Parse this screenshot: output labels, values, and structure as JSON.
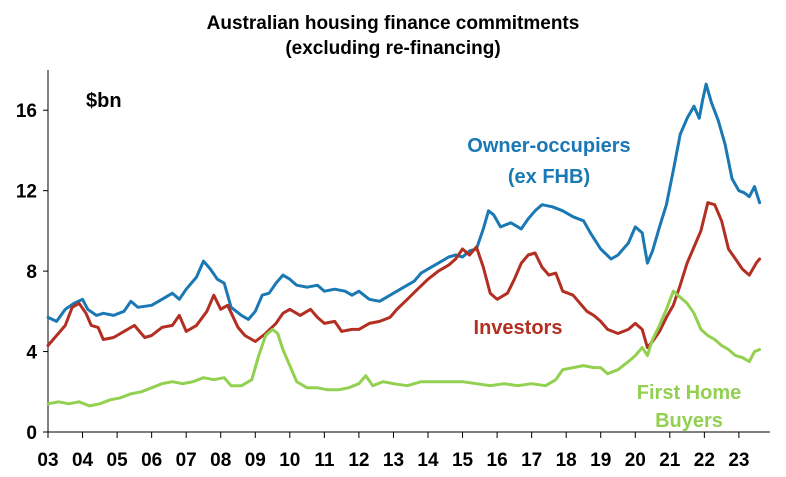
{
  "chart_data": {
    "type": "line",
    "title": "Australian housing finance commitments",
    "subtitle": "(excluding re-financing)",
    "unit_label": "$bn",
    "xlabel": "",
    "ylabel": "",
    "xlim": [
      2003.0,
      2023.9
    ],
    "ylim": [
      0,
      18
    ],
    "y_ticks": [
      0,
      4,
      8,
      12,
      16
    ],
    "x_ticks": [
      {
        "pos": 2003,
        "label": "03"
      },
      {
        "pos": 2004,
        "label": "04"
      },
      {
        "pos": 2005,
        "label": "05"
      },
      {
        "pos": 2006,
        "label": "06"
      },
      {
        "pos": 2007,
        "label": "07"
      },
      {
        "pos": 2008,
        "label": "08"
      },
      {
        "pos": 2009,
        "label": "09"
      },
      {
        "pos": 2010,
        "label": "10"
      },
      {
        "pos": 2011,
        "label": "11"
      },
      {
        "pos": 2012,
        "label": "12"
      },
      {
        "pos": 2013,
        "label": "13"
      },
      {
        "pos": 2014,
        "label": "14"
      },
      {
        "pos": 2015,
        "label": "15"
      },
      {
        "pos": 2016,
        "label": "16"
      },
      {
        "pos": 2017,
        "label": "17"
      },
      {
        "pos": 2018,
        "label": "18"
      },
      {
        "pos": 2019,
        "label": "19"
      },
      {
        "pos": 2020,
        "label": "20"
      },
      {
        "pos": 2021,
        "label": "21"
      },
      {
        "pos": 2022,
        "label": "22"
      },
      {
        "pos": 2023,
        "label": "23"
      }
    ],
    "grid": false,
    "series": [
      {
        "name": "Owner-occupiers (ex FHB)",
        "label_lines": [
          "Owner-occupiers",
          "(ex FHB)"
        ],
        "color": "#1a78b4",
        "points": [
          [
            2003.0,
            5.7
          ],
          [
            2003.25,
            5.5
          ],
          [
            2003.5,
            6.1
          ],
          [
            2003.75,
            6.4
          ],
          [
            2004.0,
            6.6
          ],
          [
            2004.15,
            6.1
          ],
          [
            2004.4,
            5.8
          ],
          [
            2004.6,
            5.9
          ],
          [
            2004.9,
            5.8
          ],
          [
            2005.2,
            6.0
          ],
          [
            2005.4,
            6.5
          ],
          [
            2005.6,
            6.2
          ],
          [
            2006.0,
            6.3
          ],
          [
            2006.3,
            6.6
          ],
          [
            2006.6,
            6.9
          ],
          [
            2006.8,
            6.6
          ],
          [
            2007.0,
            7.1
          ],
          [
            2007.3,
            7.7
          ],
          [
            2007.5,
            8.5
          ],
          [
            2007.7,
            8.1
          ],
          [
            2007.9,
            7.6
          ],
          [
            2008.1,
            7.4
          ],
          [
            2008.3,
            6.2
          ],
          [
            2008.6,
            5.8
          ],
          [
            2008.8,
            5.6
          ],
          [
            2009.0,
            6.0
          ],
          [
            2009.2,
            6.8
          ],
          [
            2009.4,
            6.9
          ],
          [
            2009.6,
            7.4
          ],
          [
            2009.8,
            7.8
          ],
          [
            2010.0,
            7.6
          ],
          [
            2010.2,
            7.3
          ],
          [
            2010.5,
            7.2
          ],
          [
            2010.8,
            7.3
          ],
          [
            2011.0,
            7.0
          ],
          [
            2011.3,
            7.1
          ],
          [
            2011.6,
            7.0
          ],
          [
            2011.8,
            6.8
          ],
          [
            2012.0,
            7.0
          ],
          [
            2012.3,
            6.6
          ],
          [
            2012.6,
            6.5
          ],
          [
            2012.8,
            6.7
          ],
          [
            2013.0,
            6.9
          ],
          [
            2013.3,
            7.2
          ],
          [
            2013.6,
            7.5
          ],
          [
            2013.8,
            7.9
          ],
          [
            2014.0,
            8.1
          ],
          [
            2014.3,
            8.4
          ],
          [
            2014.6,
            8.7
          ],
          [
            2014.8,
            8.8
          ],
          [
            2015.0,
            8.7
          ],
          [
            2015.2,
            9.0
          ],
          [
            2015.4,
            9.1
          ],
          [
            2015.6,
            10.1
          ],
          [
            2015.75,
            11.0
          ],
          [
            2015.9,
            10.8
          ],
          [
            2016.1,
            10.2
          ],
          [
            2016.4,
            10.4
          ],
          [
            2016.7,
            10.1
          ],
          [
            2016.9,
            10.6
          ],
          [
            2017.1,
            11.0
          ],
          [
            2017.3,
            11.3
          ],
          [
            2017.6,
            11.2
          ],
          [
            2017.9,
            11.0
          ],
          [
            2018.2,
            10.7
          ],
          [
            2018.5,
            10.5
          ],
          [
            2018.7,
            9.9
          ],
          [
            2019.0,
            9.1
          ],
          [
            2019.3,
            8.6
          ],
          [
            2019.5,
            8.8
          ],
          [
            2019.8,
            9.4
          ],
          [
            2020.0,
            10.2
          ],
          [
            2020.2,
            9.9
          ],
          [
            2020.35,
            8.4
          ],
          [
            2020.5,
            9.0
          ],
          [
            2020.7,
            10.2
          ],
          [
            2020.9,
            11.3
          ],
          [
            2021.1,
            13.0
          ],
          [
            2021.3,
            14.8
          ],
          [
            2021.5,
            15.6
          ],
          [
            2021.7,
            16.2
          ],
          [
            2021.85,
            15.6
          ],
          [
            2021.95,
            16.5
          ],
          [
            2022.05,
            17.3
          ],
          [
            2022.2,
            16.4
          ],
          [
            2022.4,
            15.5
          ],
          [
            2022.6,
            14.3
          ],
          [
            2022.8,
            12.6
          ],
          [
            2023.0,
            12.0
          ],
          [
            2023.15,
            11.9
          ],
          [
            2023.3,
            11.7
          ],
          [
            2023.45,
            12.2
          ],
          [
            2023.6,
            11.4
          ]
        ]
      },
      {
        "name": "Investors",
        "label_lines": [
          "Investors"
        ],
        "color": "#b22f22",
        "points": [
          [
            2003.0,
            4.3
          ],
          [
            2003.2,
            4.7
          ],
          [
            2003.5,
            5.3
          ],
          [
            2003.7,
            6.2
          ],
          [
            2003.9,
            6.4
          ],
          [
            2004.1,
            5.9
          ],
          [
            2004.25,
            5.3
          ],
          [
            2004.45,
            5.2
          ],
          [
            2004.6,
            4.6
          ],
          [
            2004.9,
            4.7
          ],
          [
            2005.2,
            5.0
          ],
          [
            2005.5,
            5.3
          ],
          [
            2005.8,
            4.7
          ],
          [
            2006.0,
            4.8
          ],
          [
            2006.3,
            5.2
          ],
          [
            2006.6,
            5.3
          ],
          [
            2006.8,
            5.8
          ],
          [
            2007.0,
            5.0
          ],
          [
            2007.3,
            5.3
          ],
          [
            2007.6,
            6.0
          ],
          [
            2007.8,
            6.8
          ],
          [
            2008.0,
            6.1
          ],
          [
            2008.2,
            6.3
          ],
          [
            2008.5,
            5.2
          ],
          [
            2008.7,
            4.8
          ],
          [
            2009.0,
            4.5
          ],
          [
            2009.3,
            4.9
          ],
          [
            2009.6,
            5.4
          ],
          [
            2009.8,
            5.9
          ],
          [
            2010.0,
            6.1
          ],
          [
            2010.3,
            5.8
          ],
          [
            2010.6,
            6.1
          ],
          [
            2010.8,
            5.7
          ],
          [
            2011.0,
            5.4
          ],
          [
            2011.3,
            5.5
          ],
          [
            2011.5,
            5.0
          ],
          [
            2011.8,
            5.1
          ],
          [
            2012.0,
            5.1
          ],
          [
            2012.3,
            5.4
          ],
          [
            2012.6,
            5.5
          ],
          [
            2012.9,
            5.7
          ],
          [
            2013.1,
            6.1
          ],
          [
            2013.4,
            6.6
          ],
          [
            2013.7,
            7.1
          ],
          [
            2014.0,
            7.6
          ],
          [
            2014.3,
            8.0
          ],
          [
            2014.6,
            8.3
          ],
          [
            2014.8,
            8.6
          ],
          [
            2015.0,
            9.1
          ],
          [
            2015.2,
            8.8
          ],
          [
            2015.4,
            9.2
          ],
          [
            2015.6,
            8.2
          ],
          [
            2015.8,
            6.9
          ],
          [
            2016.0,
            6.6
          ],
          [
            2016.3,
            6.9
          ],
          [
            2016.5,
            7.6
          ],
          [
            2016.7,
            8.4
          ],
          [
            2016.9,
            8.8
          ],
          [
            2017.1,
            8.9
          ],
          [
            2017.3,
            8.2
          ],
          [
            2017.5,
            7.8
          ],
          [
            2017.7,
            7.9
          ],
          [
            2017.9,
            7.0
          ],
          [
            2018.2,
            6.8
          ],
          [
            2018.4,
            6.4
          ],
          [
            2018.6,
            6.0
          ],
          [
            2018.8,
            5.8
          ],
          [
            2019.0,
            5.5
          ],
          [
            2019.2,
            5.1
          ],
          [
            2019.5,
            4.9
          ],
          [
            2019.8,
            5.1
          ],
          [
            2020.0,
            5.4
          ],
          [
            2020.2,
            5.1
          ],
          [
            2020.35,
            4.2
          ],
          [
            2020.5,
            4.5
          ],
          [
            2020.7,
            5.0
          ],
          [
            2020.9,
            5.7
          ],
          [
            2021.1,
            6.3
          ],
          [
            2021.3,
            7.3
          ],
          [
            2021.5,
            8.4
          ],
          [
            2021.7,
            9.2
          ],
          [
            2021.9,
            10.0
          ],
          [
            2022.1,
            11.4
          ],
          [
            2022.3,
            11.3
          ],
          [
            2022.5,
            10.5
          ],
          [
            2022.7,
            9.1
          ],
          [
            2022.9,
            8.6
          ],
          [
            2023.1,
            8.1
          ],
          [
            2023.3,
            7.8
          ],
          [
            2023.5,
            8.4
          ],
          [
            2023.6,
            8.6
          ]
        ]
      },
      {
        "name": "First Home Buyers",
        "label_lines": [
          "First Home",
          "Buyers"
        ],
        "color": "#92d050",
        "points": [
          [
            2003.0,
            1.4
          ],
          [
            2003.3,
            1.5
          ],
          [
            2003.6,
            1.4
          ],
          [
            2003.9,
            1.5
          ],
          [
            2004.2,
            1.3
          ],
          [
            2004.5,
            1.4
          ],
          [
            2004.8,
            1.6
          ],
          [
            2005.1,
            1.7
          ],
          [
            2005.4,
            1.9
          ],
          [
            2005.7,
            2.0
          ],
          [
            2006.0,
            2.2
          ],
          [
            2006.3,
            2.4
          ],
          [
            2006.6,
            2.5
          ],
          [
            2006.9,
            2.4
          ],
          [
            2007.2,
            2.5
          ],
          [
            2007.5,
            2.7
          ],
          [
            2007.8,
            2.6
          ],
          [
            2008.1,
            2.7
          ],
          [
            2008.3,
            2.3
          ],
          [
            2008.6,
            2.3
          ],
          [
            2008.9,
            2.6
          ],
          [
            2009.1,
            3.8
          ],
          [
            2009.3,
            4.8
          ],
          [
            2009.5,
            5.1
          ],
          [
            2009.65,
            4.9
          ],
          [
            2009.8,
            4.1
          ],
          [
            2010.0,
            3.3
          ],
          [
            2010.2,
            2.5
          ],
          [
            2010.5,
            2.2
          ],
          [
            2010.8,
            2.2
          ],
          [
            2011.1,
            2.1
          ],
          [
            2011.4,
            2.1
          ],
          [
            2011.7,
            2.2
          ],
          [
            2012.0,
            2.4
          ],
          [
            2012.2,
            2.8
          ],
          [
            2012.4,
            2.3
          ],
          [
            2012.7,
            2.5
          ],
          [
            2013.0,
            2.4
          ],
          [
            2013.4,
            2.3
          ],
          [
            2013.8,
            2.5
          ],
          [
            2014.2,
            2.5
          ],
          [
            2014.6,
            2.5
          ],
          [
            2015.0,
            2.5
          ],
          [
            2015.4,
            2.4
          ],
          [
            2015.8,
            2.3
          ],
          [
            2016.2,
            2.4
          ],
          [
            2016.6,
            2.3
          ],
          [
            2017.0,
            2.4
          ],
          [
            2017.4,
            2.3
          ],
          [
            2017.7,
            2.6
          ],
          [
            2017.9,
            3.1
          ],
          [
            2018.2,
            3.2
          ],
          [
            2018.5,
            3.3
          ],
          [
            2018.8,
            3.2
          ],
          [
            2019.0,
            3.2
          ],
          [
            2019.2,
            2.9
          ],
          [
            2019.5,
            3.1
          ],
          [
            2019.8,
            3.5
          ],
          [
            2020.0,
            3.8
          ],
          [
            2020.2,
            4.2
          ],
          [
            2020.35,
            3.8
          ],
          [
            2020.5,
            4.6
          ],
          [
            2020.7,
            5.3
          ],
          [
            2020.9,
            6.1
          ],
          [
            2021.1,
            7.0
          ],
          [
            2021.3,
            6.7
          ],
          [
            2021.5,
            6.4
          ],
          [
            2021.7,
            5.9
          ],
          [
            2021.9,
            5.1
          ],
          [
            2022.1,
            4.8
          ],
          [
            2022.3,
            4.6
          ],
          [
            2022.5,
            4.3
          ],
          [
            2022.7,
            4.1
          ],
          [
            2022.9,
            3.8
          ],
          [
            2023.1,
            3.7
          ],
          [
            2023.3,
            3.5
          ],
          [
            2023.45,
            4.0
          ],
          [
            2023.6,
            4.1
          ]
        ]
      }
    ]
  }
}
